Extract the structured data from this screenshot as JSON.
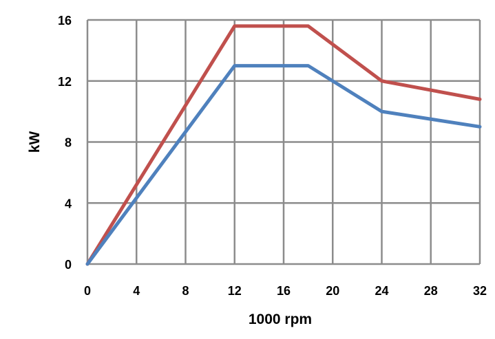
{
  "chart_data": {
    "type": "line",
    "title": "",
    "xlabel": "1000 rpm",
    "ylabel": "kW",
    "xlim": [
      0,
      32
    ],
    "ylim": [
      0,
      16
    ],
    "xticks": [
      0,
      4,
      8,
      12,
      16,
      20,
      24,
      28,
      32
    ],
    "yticks": [
      0,
      4,
      8,
      12,
      16
    ],
    "grid": true,
    "legend": "none",
    "series": [
      {
        "color": "#c0504d",
        "x": [
          0,
          12,
          18,
          24,
          32
        ],
        "y": [
          0,
          15.6,
          15.6,
          12,
          10.8
        ]
      },
      {
        "color": "#4f81bd",
        "x": [
          0,
          12,
          18,
          24,
          32
        ],
        "y": [
          0,
          13,
          13,
          10,
          9
        ]
      }
    ]
  }
}
